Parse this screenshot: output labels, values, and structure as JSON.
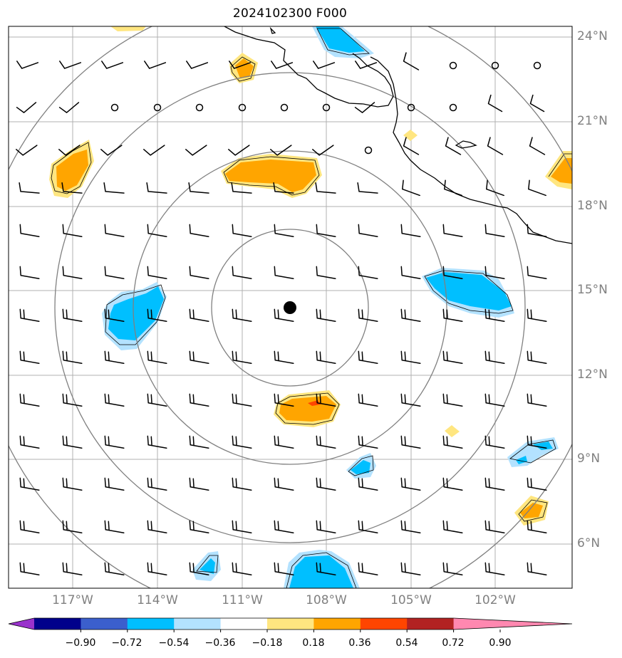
{
  "title": "2024102300 F000",
  "map": {
    "center_marker": "storm-center-dot",
    "lat_labels": [
      "24°N",
      "21°N",
      "18°N",
      "15°N",
      "12°N",
      "9°N",
      "6°N"
    ],
    "lon_labels": [
      "117°W",
      "114°W",
      "111°W",
      "108°W",
      "105°W",
      "102°W"
    ],
    "range_rings": 4,
    "contour_colors": {
      "neg_strong": "#00bfff",
      "neg_weak": "#b3e2ff",
      "pos_weak": "#ffe680",
      "pos_strong": "#ffa500",
      "pos_peak": "#ff4500"
    }
  },
  "colorbar": {
    "tick_labels": [
      "−0.90",
      "−0.72",
      "−0.54",
      "−0.36",
      "−0.18",
      "0.18",
      "0.36",
      "0.54",
      "0.72",
      "0.90"
    ],
    "colors": [
      "#9932cc",
      "#00008b",
      "#3b5fcd",
      "#00bfff",
      "#b3e2ff",
      "#ffffff",
      "#ffe680",
      "#ffa500",
      "#ff4500",
      "#b22222",
      "#ff88b0"
    ]
  }
}
